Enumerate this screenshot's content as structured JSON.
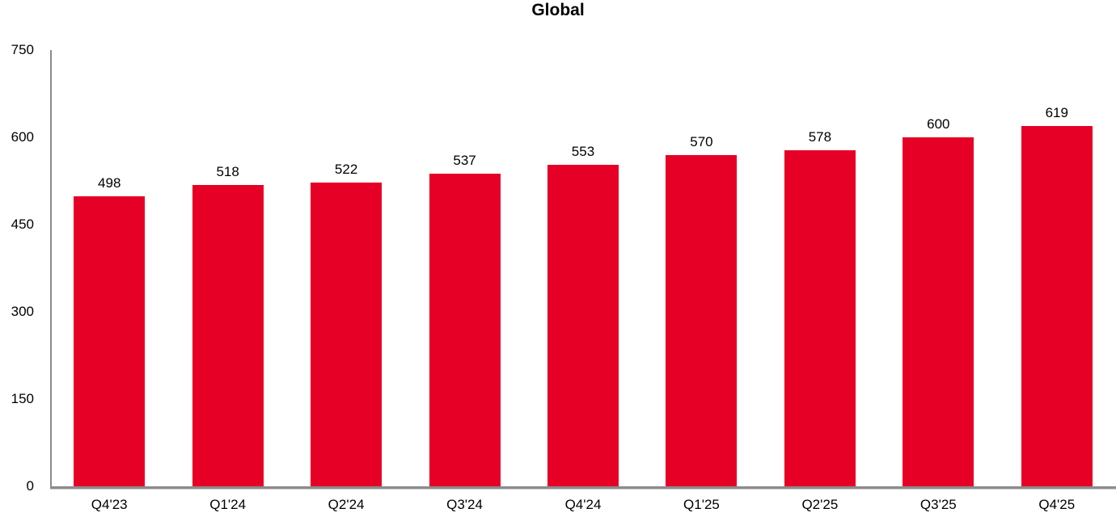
{
  "title": "Global",
  "chart_data": {
    "type": "bar",
    "title": "Global",
    "categories": [
      "Q4'23",
      "Q1'24",
      "Q2'24",
      "Q3'24",
      "Q4'24",
      "Q1'25",
      "Q2'25",
      "Q3'25",
      "Q4'25"
    ],
    "values": [
      498,
      518,
      522,
      537,
      553,
      570,
      578,
      600,
      619
    ],
    "xlabel": "",
    "ylabel": "",
    "ylim": [
      0,
      750
    ],
    "yticks": [
      0,
      150,
      300,
      450,
      600,
      750
    ],
    "value_labels": true,
    "grid": false,
    "legend_position": "none",
    "colors": {
      "bar": "#e60026",
      "axis": "#8c8c8c",
      "text": "#000000",
      "background": "#ffffff"
    }
  }
}
